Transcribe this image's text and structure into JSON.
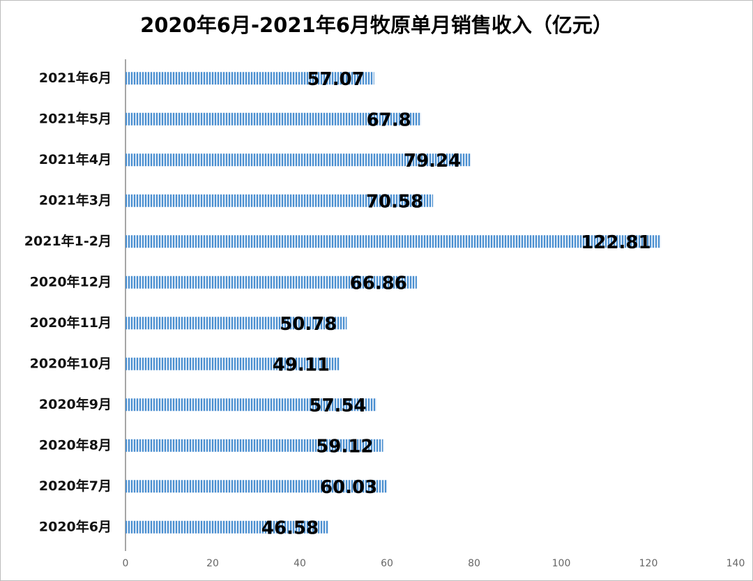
{
  "chart_data": {
    "type": "hbar",
    "title": "2020年6月-2021年6月牧原单月销售收入（亿元）",
    "categories": [
      "2021年6月",
      "2021年5月",
      "2021年4月",
      "2021年3月",
      "2021年1-2月",
      "2020年12月",
      "2020年11月",
      "2020年10月",
      "2020年9月",
      "2020年8月",
      "2020年7月",
      "2020年6月"
    ],
    "values": [
      57.07,
      67.8,
      79.24,
      70.58,
      122.81,
      66.86,
      50.78,
      49.11,
      57.54,
      59.12,
      60.03,
      46.58
    ],
    "color": "#4a8fd0",
    "xlim": [
      0,
      140
    ],
    "xticks": [
      0,
      20,
      40,
      60,
      80,
      100,
      120,
      140
    ]
  }
}
